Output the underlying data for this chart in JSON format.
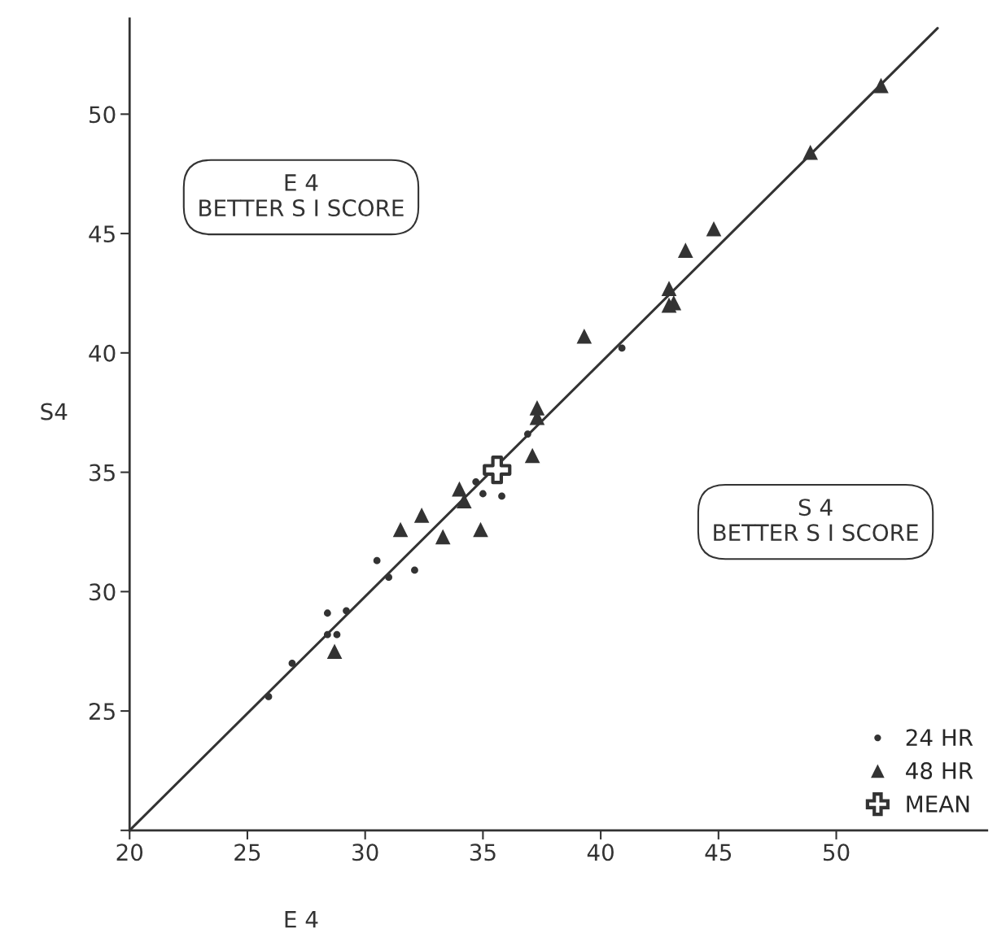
{
  "chart_data": {
    "type": "scatter",
    "xlabel": "E 4",
    "ylabel": "S4",
    "xlim": [
      20,
      56.4
    ],
    "ylim": [
      20,
      54
    ],
    "xticks": [
      20,
      25,
      30,
      35,
      40,
      45,
      50
    ],
    "yticks": [
      {
        "value": 20,
        "label": null
      },
      25,
      30,
      35,
      40,
      45,
      50
    ],
    "grid": false,
    "legend": "bottom right",
    "series": [
      {
        "name": "24 HR",
        "marker": "circle",
        "color": "#333333",
        "x": [
          25.9,
          26.9,
          28.4,
          28.4,
          28.8,
          29.2,
          30.5,
          31.0,
          32.1,
          34.7,
          35.0,
          35.8,
          36.9,
          37.5,
          40.9
        ],
        "values": [
          25.6,
          27.0,
          28.2,
          29.1,
          28.2,
          29.2,
          31.3,
          30.6,
          30.9,
          34.6,
          34.1,
          34.0,
          36.6,
          null,
          40.2
        ]
      },
      {
        "name": "48 HR",
        "marker": "triangle",
        "color": "#333333",
        "x": [
          28.7,
          31.5,
          32.4,
          33.3,
          34.0,
          34.2,
          34.9,
          37.1,
          37.3,
          37.3,
          39.3,
          42.9,
          43.1,
          42.9,
          43.6,
          44.8,
          48.9,
          51.9
        ],
        "values": [
          27.5,
          32.6,
          33.2,
          32.3,
          34.3,
          33.8,
          32.6,
          35.7,
          37.7,
          37.3,
          40.7,
          42.7,
          42.1,
          42.0,
          44.3,
          45.2,
          48.4,
          51.2
        ]
      },
      {
        "name": "MEAN",
        "marker": "cross",
        "color": "#333333",
        "x": [
          35.6
        ],
        "values": [
          35.1
        ]
      },
      {
        "type": "line",
        "line_style": "solid",
        "color": "#333333",
        "x": [
          20,
          54.3
        ],
        "values": [
          20,
          53.6
        ]
      }
    ],
    "annotations": [
      "E 4\nBETTER S I SCORE",
      "S 4\nBETTER S I SCORE"
    ]
  }
}
